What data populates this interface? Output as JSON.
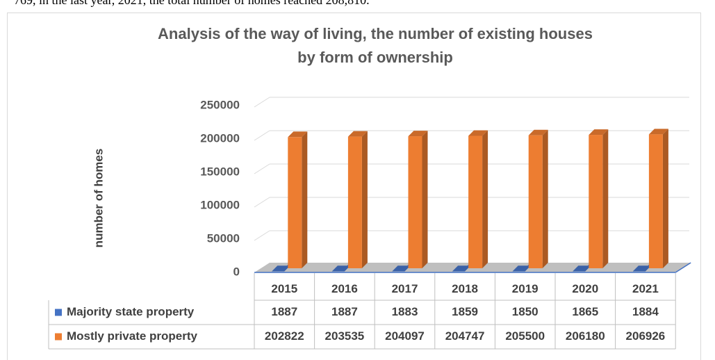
{
  "context_text": "769, in the last year, 2021, the total number of homes reached 208,810.",
  "chart_data": {
    "type": "bar3d",
    "title": "Analysis of the way of living, the number of existing houses by form of ownership",
    "y_label": "number of homes",
    "categories": [
      "2015",
      "2016",
      "2017",
      "2018",
      "2019",
      "2020",
      "2021"
    ],
    "series": [
      {
        "name": "Majority state property",
        "color": "#4472c4",
        "values": [
          1887,
          1887,
          1883,
          1859,
          1850,
          1865,
          1884
        ]
      },
      {
        "name": "Mostly private property",
        "color": "#ed7d31",
        "values": [
          202822,
          203535,
          204097,
          204747,
          205500,
          206180,
          206926
        ]
      }
    ],
    "ylim": [
      0,
      250000
    ],
    "yticks": [
      0,
      50000,
      100000,
      150000,
      200000,
      250000
    ],
    "grid": true,
    "data_table": true
  }
}
